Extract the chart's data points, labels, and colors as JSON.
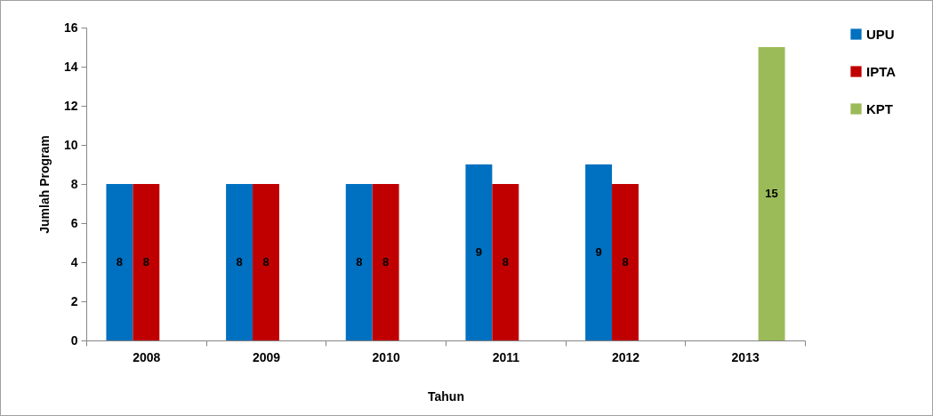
{
  "chart_data": {
    "type": "bar",
    "xlabel": "Tahun",
    "ylabel": "Jumlah Program",
    "categories": [
      "2008",
      "2009",
      "2010",
      "2011",
      "2012",
      "2013"
    ],
    "series": [
      {
        "name": "UPU",
        "color": "#0070c0",
        "values": [
          8,
          8,
          8,
          9,
          9,
          null
        ]
      },
      {
        "name": "IPTA",
        "color": "#c00000",
        "values": [
          8,
          8,
          8,
          8,
          8,
          null
        ]
      },
      {
        "name": "KPT",
        "color": "#9bbb59",
        "values": [
          null,
          null,
          null,
          null,
          null,
          15
        ]
      }
    ],
    "ylim": [
      0,
      16
    ],
    "yticks": [
      0,
      2,
      4,
      6,
      8,
      10,
      12,
      14,
      16
    ],
    "data_labels": true,
    "legend": "right"
  }
}
